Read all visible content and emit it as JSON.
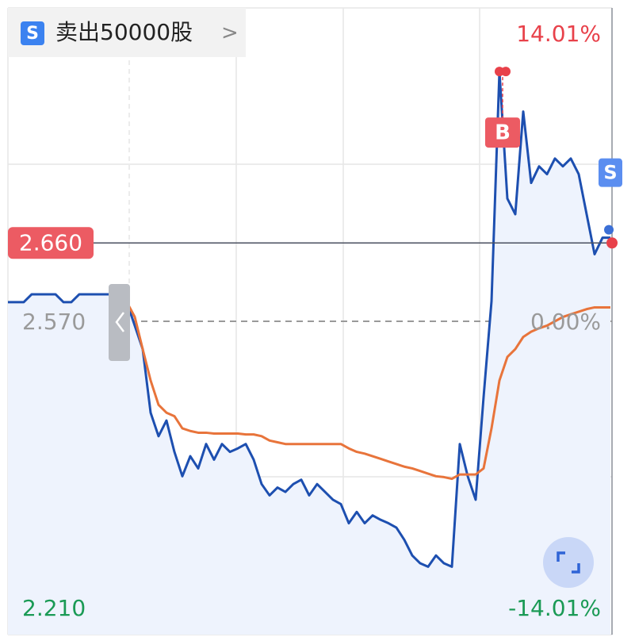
{
  "chart_data": {
    "type": "line",
    "order_badge": {
      "icon": "S",
      "text": "卖出50000股",
      "arrow": ">"
    },
    "ylim": [
      2.21,
      2.93
    ],
    "yticks": [
      {
        "value": 2.21,
        "label": "2.210"
      },
      {
        "value": 2.57,
        "label": "2.570"
      }
    ],
    "y2lim": [
      -14.01,
      14.01
    ],
    "y2ticks": [
      {
        "value": 14.01,
        "label": "14.01%"
      },
      {
        "value": 0,
        "label": "0.00%"
      },
      {
        "value": -14.01,
        "label": "-14.01%"
      }
    ],
    "current_price": {
      "value": 2.66,
      "label": "2.660"
    },
    "series": [
      {
        "name": "price",
        "color": "#1d4fb0",
        "values": [
          2.592,
          2.592,
          2.592,
          2.601,
          2.601,
          2.601,
          2.601,
          2.592,
          2.592,
          2.601,
          2.601,
          2.601,
          2.601,
          2.601,
          2.592,
          2.592,
          2.565,
          2.538,
          2.465,
          2.438,
          2.456,
          2.42,
          2.392,
          2.415,
          2.401,
          2.429,
          2.411,
          2.429,
          2.42,
          2.424,
          2.429,
          2.411,
          2.383,
          2.37,
          2.379,
          2.374,
          2.383,
          2.388,
          2.37,
          2.383,
          2.374,
          2.365,
          2.36,
          2.338,
          2.351,
          2.338,
          2.347,
          2.342,
          2.338,
          2.333,
          2.319,
          2.301,
          2.292,
          2.288,
          2.301,
          2.292,
          2.288,
          2.429,
          2.392,
          2.365,
          2.483,
          2.593,
          2.857,
          2.711,
          2.693,
          2.811,
          2.729,
          2.748,
          2.739,
          2.757,
          2.748,
          2.757,
          2.739,
          2.693,
          2.647,
          2.666,
          2.666
        ]
      },
      {
        "name": "average",
        "color": "#e8743b",
        "values": [
          null,
          null,
          null,
          null,
          null,
          null,
          null,
          null,
          null,
          null,
          null,
          null,
          null,
          null,
          null,
          2.592,
          2.575,
          2.538,
          2.502,
          2.474,
          2.465,
          2.461,
          2.447,
          2.444,
          2.442,
          2.442,
          2.441,
          2.441,
          2.441,
          2.441,
          2.44,
          2.44,
          2.438,
          2.433,
          2.431,
          2.429,
          2.429,
          2.429,
          2.429,
          2.429,
          2.429,
          2.429,
          2.429,
          2.424,
          2.42,
          2.418,
          2.415,
          2.412,
          2.409,
          2.406,
          2.403,
          2.401,
          2.398,
          2.395,
          2.392,
          2.391,
          2.389,
          2.394,
          2.394,
          2.394,
          2.401,
          2.447,
          2.502,
          2.529,
          2.538,
          2.552,
          2.558,
          2.562,
          2.565,
          2.57,
          2.575,
          2.578,
          2.581,
          2.584,
          2.586,
          2.586,
          2.586
        ]
      }
    ],
    "annotations": [
      {
        "text": "B",
        "index": 62
      },
      {
        "text": "S",
        "index": 76
      }
    ]
  }
}
